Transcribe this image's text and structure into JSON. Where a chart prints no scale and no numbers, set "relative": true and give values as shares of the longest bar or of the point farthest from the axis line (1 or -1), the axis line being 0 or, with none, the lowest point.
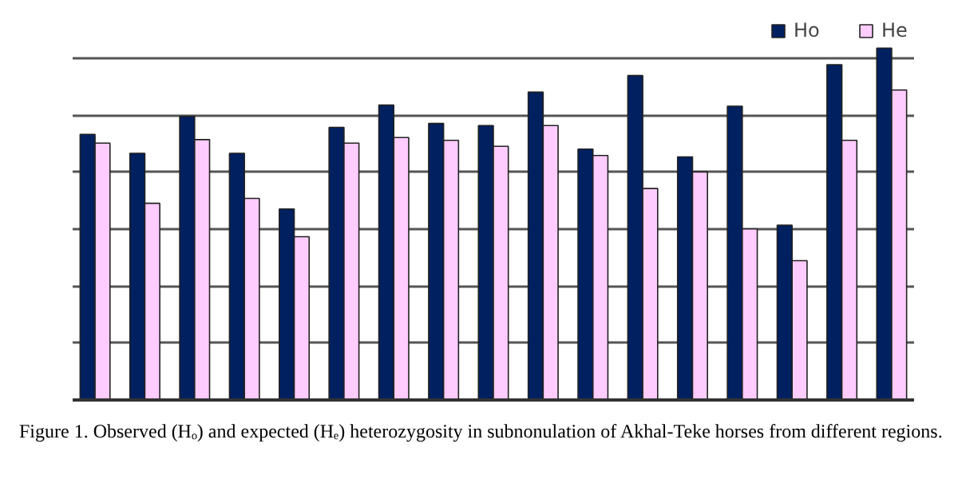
{
  "chart_data": {
    "type": "bar",
    "relative": true,
    "grid": "y",
    "legend": "top right",
    "categories": [
      null,
      null,
      null,
      null,
      null,
      null,
      null,
      null,
      null,
      null,
      null,
      null,
      null,
      null,
      null,
      null,
      null
    ],
    "series": [
      {
        "name": "Ho",
        "color": "#002060",
        "values": [
          0.755,
          0.701,
          0.806,
          0.701,
          0.543,
          0.775,
          0.838,
          0.786,
          0.78,
          0.875,
          0.713,
          0.922,
          0.691,
          0.835,
          0.497,
          0.953,
          1
        ]
      },
      {
        "name": "He",
        "color": "#ffccff",
        "values": [
          0.73,
          0.559,
          0.74,
          0.573,
          0.464,
          0.73,
          0.746,
          0.738,
          0.721,
          0.78,
          0.695,
          0.601,
          0.648,
          0.486,
          0.396,
          0.738,
          0.881
        ]
      }
    ],
    "annotations": [
      "Figure 1. Observed (Hₒ) and expected (Hₑ) heterozygosity in subnonulation of Akhal-Teke horses  from different  regions."
    ]
  }
}
